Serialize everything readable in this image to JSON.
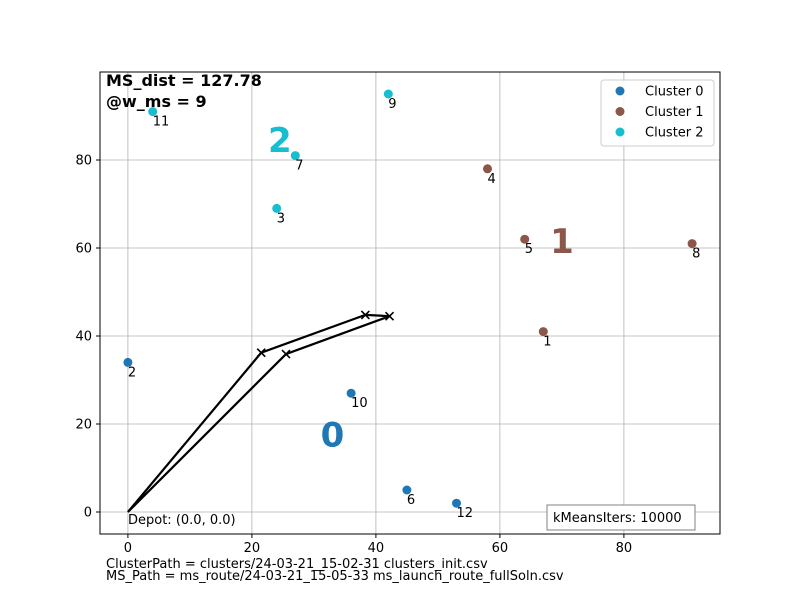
{
  "chart_data": {
    "type": "scatter",
    "xlim": [
      -4.5,
      95.5
    ],
    "ylim": [
      -5,
      100
    ],
    "xticks": [
      0,
      20,
      40,
      60,
      80
    ],
    "yticks": [
      0,
      20,
      40,
      60,
      80
    ],
    "grid": true,
    "legend_position": "top-right",
    "series": [
      {
        "name": "Cluster 0",
        "color": "#1f77b4",
        "points": [
          {
            "x": 0,
            "y": 34,
            "label": "2"
          },
          {
            "x": 36,
            "y": 27,
            "label": "10"
          },
          {
            "x": 45,
            "y": 5,
            "label": "6"
          },
          {
            "x": 53,
            "y": 2,
            "label": "12"
          }
        ]
      },
      {
        "name": "Cluster 1",
        "color": "#8c564b",
        "points": [
          {
            "x": 58,
            "y": 78,
            "label": "4"
          },
          {
            "x": 64,
            "y": 62,
            "label": "5"
          },
          {
            "x": 67,
            "y": 41,
            "label": "1"
          },
          {
            "x": 91,
            "y": 61,
            "label": "8"
          }
        ]
      },
      {
        "name": "Cluster 2",
        "color": "#17becf",
        "points": [
          {
            "x": 4,
            "y": 91,
            "label": "11"
          },
          {
            "x": 27,
            "y": 81,
            "label": "7"
          },
          {
            "x": 24,
            "y": 69,
            "label": "3"
          },
          {
            "x": 42,
            "y": 95,
            "label": "9"
          }
        ]
      }
    ],
    "cluster_labels": [
      {
        "text": "0",
        "x": 33,
        "y": 17,
        "color": "#1f77b4"
      },
      {
        "text": "1",
        "x": 70,
        "y": 61,
        "color": "#8c564b"
      },
      {
        "text": "2",
        "x": 24.5,
        "y": 84,
        "color": "#17becf"
      }
    ],
    "route": {
      "color": "#000000",
      "points": [
        {
          "x": 0,
          "y": 0,
          "marker": false
        },
        {
          "x": 21.5,
          "y": 36.2,
          "marker": true
        },
        {
          "x": 38.3,
          "y": 44.8,
          "marker": true
        },
        {
          "x": 42.2,
          "y": 44.5,
          "marker": true
        },
        {
          "x": 25.5,
          "y": 35.9,
          "marker": true
        },
        {
          "x": 0,
          "y": 0,
          "marker": false
        }
      ]
    },
    "annotations": {
      "ms_dist": "MS_dist = 127.78",
      "w_ms": "@w_ms = 9",
      "depot": "Depot: (0.0, 0.0)",
      "kmeans_iters": "kMeansIters: 10000"
    }
  },
  "footer": {
    "cluster_path": "ClusterPath = clusters/24-03-21_15-02-31 clusters_init.csv",
    "ms_path": "MS_Path = ms_route/24-03-21_15-05-33 ms_launch_route_fullSoln.csv"
  }
}
